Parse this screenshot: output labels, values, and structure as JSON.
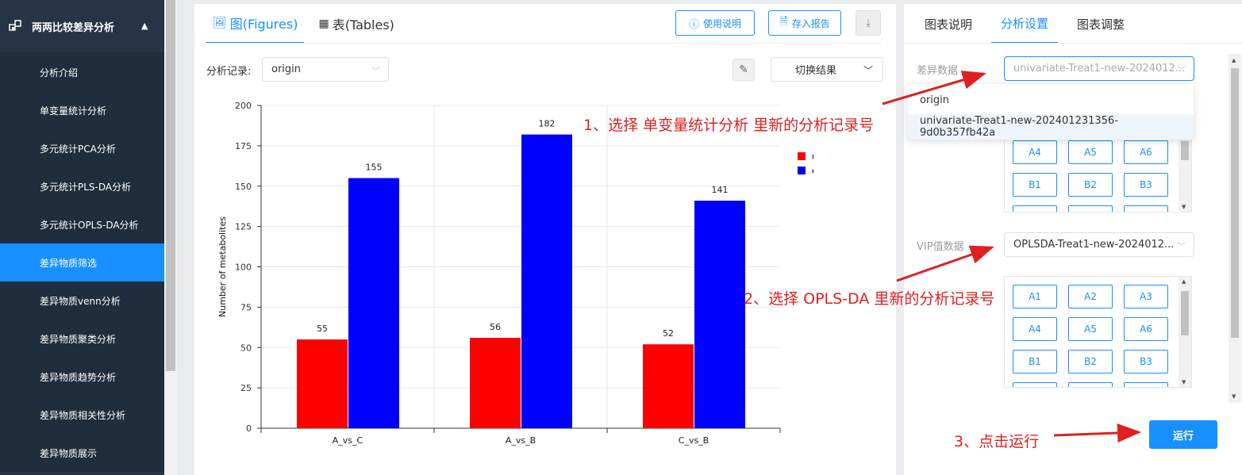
{
  "sidebar": {
    "header_label": "两两比较差异分析",
    "header_icon": "modules-icon",
    "items": [
      {
        "label": "分析介绍",
        "active": false
      },
      {
        "label": "单变量统计分析",
        "active": false
      },
      {
        "label": "多元统计PCA分析",
        "active": false
      },
      {
        "label": "多元统计PLS-DA分析",
        "active": false
      },
      {
        "label": "多元统计OPLS-DA分析",
        "active": false
      },
      {
        "label": "差异物质筛选",
        "active": true
      },
      {
        "label": "差异物质venn分析",
        "active": false
      },
      {
        "label": "差异物质聚类分析",
        "active": false
      },
      {
        "label": "差异物质趋势分析",
        "active": false
      },
      {
        "label": "差异物质相关性分析",
        "active": false
      },
      {
        "label": "差异物质展示",
        "active": false
      }
    ]
  },
  "main": {
    "tabs": [
      {
        "label": "图(Figures)",
        "icon": "image-icon",
        "active": true
      },
      {
        "label": "表(Tables)",
        "icon": "table-icon",
        "active": false
      }
    ],
    "help_label": "使用说明",
    "save_label": "存入报告",
    "record_label": "分析记录:",
    "record_value": "origin",
    "switch_label": "切换结果"
  },
  "chart_data": {
    "type": "bar",
    "categories": [
      "A_vs_C",
      "A_vs_B",
      "C_vs_B"
    ],
    "series": [
      {
        "name": "up",
        "values": [
          55,
          56,
          52
        ],
        "color": "#ff0000"
      },
      {
        "name": "down",
        "values": [
          155,
          182,
          141
        ],
        "color": "#0000ff"
      }
    ],
    "ylabel": "Number of metabolites",
    "yticks": [
      0,
      25,
      50,
      75,
      100,
      125,
      150,
      175,
      200
    ],
    "ylim": [
      0,
      200
    ],
    "legend_position": "top-right",
    "grid": true
  },
  "right": {
    "tabs": [
      {
        "label": "图表说明",
        "active": false
      },
      {
        "label": "分析设置",
        "active": true
      },
      {
        "label": "图表调整",
        "active": false
      }
    ],
    "diff_label": "差异数据",
    "diff_value": "univariate-Treat1-new-2024012...",
    "dropdown_options": [
      "origin",
      "univariate-Treat1-new-202401231356-9d0b357fb42a"
    ],
    "vip_label": "VIP值数据",
    "vip_value": "OPLSDA-Treat1-new-2024012...",
    "grid1": [
      "A4",
      "A5",
      "A6",
      "B1",
      "B2",
      "B3"
    ],
    "grid2": [
      "A1",
      "A2",
      "A3",
      "A4",
      "A5",
      "A6",
      "B1",
      "B2",
      "B3"
    ],
    "run_label": "运行"
  },
  "annotations": {
    "step1": "1、选择 单变量统计分析 里新的分析记录号",
    "step2": "2、选择 OPLS-DA 里新的分析记录号",
    "step3": "3、点击运行"
  }
}
